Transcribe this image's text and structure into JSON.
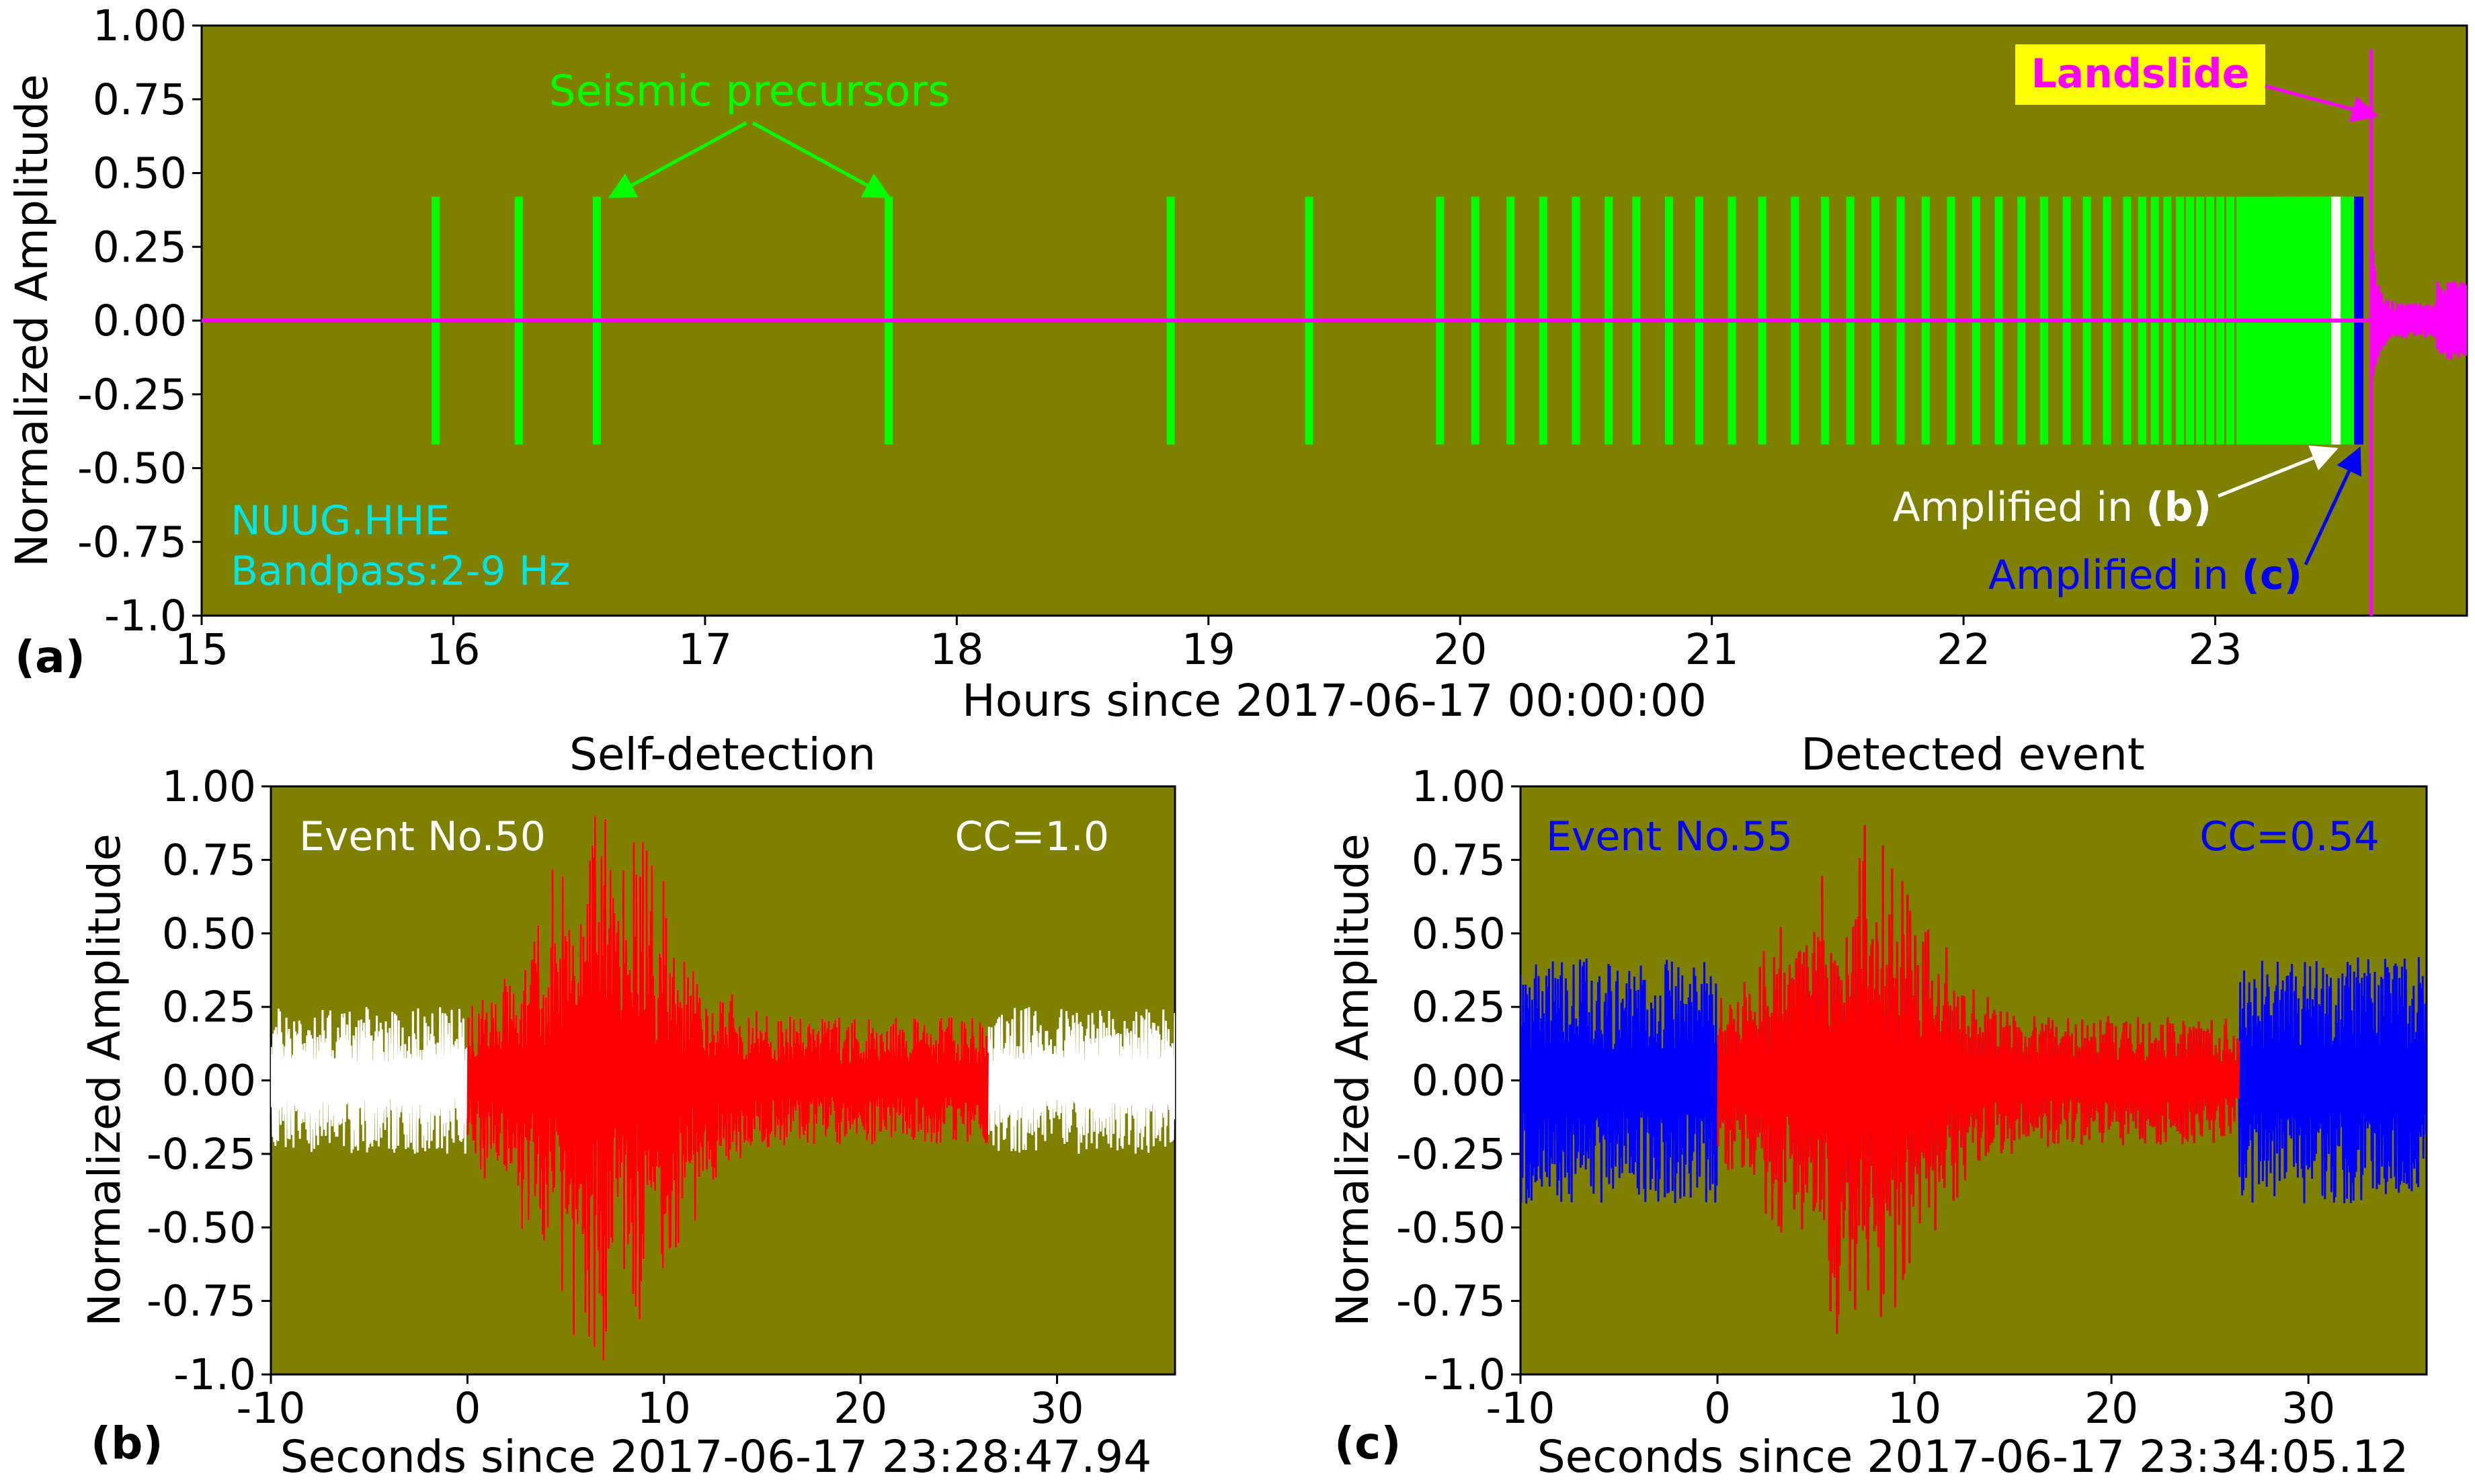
{
  "colors": {
    "background": "#808000",
    "precursor": "#00ff00",
    "landslide": "#ff00ff",
    "highlight_b": "#ffffff",
    "highlight_c": "#0000ff",
    "template_window": "#ff0000",
    "station_text": "#00e5e5",
    "landslide_box": "#ffff00"
  },
  "chart_data": [
    {
      "panel": "(a)",
      "type": "line",
      "title": "",
      "xlabel": "Hours since 2017-06-17 00:00:00",
      "ylabel": "Normalized Amplitude",
      "xlim": [
        15,
        24
      ],
      "ylim": [
        -1.0,
        1.0
      ],
      "xticks": [
        "15",
        "16",
        "17",
        "18",
        "19",
        "20",
        "21",
        "22",
        "23"
      ],
      "yticks": [
        "1.00",
        "0.75",
        "0.50",
        "0.25",
        "0.00",
        "-0.25",
        "-0.50",
        "-0.75",
        "-1.0"
      ],
      "precursor_bar_range": [
        -0.42,
        0.42
      ],
      "precursor_times_hours": [
        15.93,
        16.26,
        16.57,
        17.73,
        18.85,
        19.4,
        19.92,
        20.06,
        20.2,
        20.33,
        20.46,
        20.59,
        20.7,
        20.83,
        20.95,
        21.08,
        21.2,
        21.33,
        21.45,
        21.55,
        21.65,
        21.75,
        21.85,
        21.95,
        22.05,
        22.14,
        22.23,
        22.32,
        22.41,
        22.49,
        22.57,
        22.65,
        22.71,
        22.76,
        22.81,
        22.86,
        22.9,
        22.94,
        22.98,
        23.02,
        23.06,
        23.1,
        23.13,
        23.16,
        23.19,
        23.22,
        23.25,
        23.28,
        23.31,
        23.34,
        23.37,
        23.4,
        23.43,
        23.46
      ],
      "highlighted_events": [
        {
          "event": "b",
          "time_hours": 23.48
        },
        {
          "event": "c",
          "time_hours": 23.57
        }
      ],
      "landslide_time_hours": 23.62,
      "annotations": {
        "precursors": "Seismic precursors",
        "landslide": "Landslide",
        "station": "NUUG.HHE",
        "bandpass": "Bandpass:2-9 Hz",
        "amplified_b_prefix": "Amplified in ",
        "amplified_b_ref": "(b)",
        "amplified_c_prefix": "Amplified in ",
        "amplified_c_ref": "(c)"
      }
    },
    {
      "panel": "(b)",
      "type": "line",
      "title": "Self-detection",
      "xlabel": "Seconds since 2017-06-17 23:28:47.94",
      "ylabel": "Normalized Amplitude",
      "xlim": [
        -10,
        36
      ],
      "ylim": [
        -1.0,
        1.0
      ],
      "xticks": [
        "-10",
        "0",
        "10",
        "20",
        "30"
      ],
      "yticks": [
        "1.00",
        "0.75",
        "0.50",
        "0.25",
        "0.00",
        "-0.25",
        "-0.50",
        "-0.75",
        "-1.0"
      ],
      "series": [
        {
          "name": "continuous",
          "color": "#ffffff",
          "x_range": [
            -10,
            36
          ],
          "noise_amplitude": 0.25
        },
        {
          "name": "template window",
          "color": "#ff0000",
          "x_range": [
            0,
            26.5
          ],
          "peak_amplitude": 0.97,
          "peak_time": 7
        }
      ],
      "event_label": "Event No.50",
      "cc_label": "CC=1.0",
      "label_color": "#ffffff"
    },
    {
      "panel": "(c)",
      "type": "line",
      "title": "Detected event",
      "xlabel": "Seconds since 2017-06-17 23:34:05.12",
      "ylabel": "Normalized Amplitude",
      "xlim": [
        -10,
        36
      ],
      "ylim": [
        -1.0,
        1.0
      ],
      "xticks": [
        "-10",
        "0",
        "10",
        "20",
        "30"
      ],
      "yticks": [
        "1.00",
        "0.75",
        "0.50",
        "0.25",
        "0.00",
        "-0.25",
        "-0.50",
        "-0.75",
        "-1.0"
      ],
      "series": [
        {
          "name": "continuous",
          "color": "#0000ff",
          "x_range": [
            -10,
            36
          ],
          "noise_amplitude": 0.42
        },
        {
          "name": "template window",
          "color": "#ff0000",
          "x_range": [
            0,
            26.5
          ],
          "peak_amplitude": 0.9,
          "peak_time": 7
        }
      ],
      "event_label": "Event No.55",
      "cc_label": "CC=0.54",
      "label_color": "#0000ff"
    }
  ]
}
